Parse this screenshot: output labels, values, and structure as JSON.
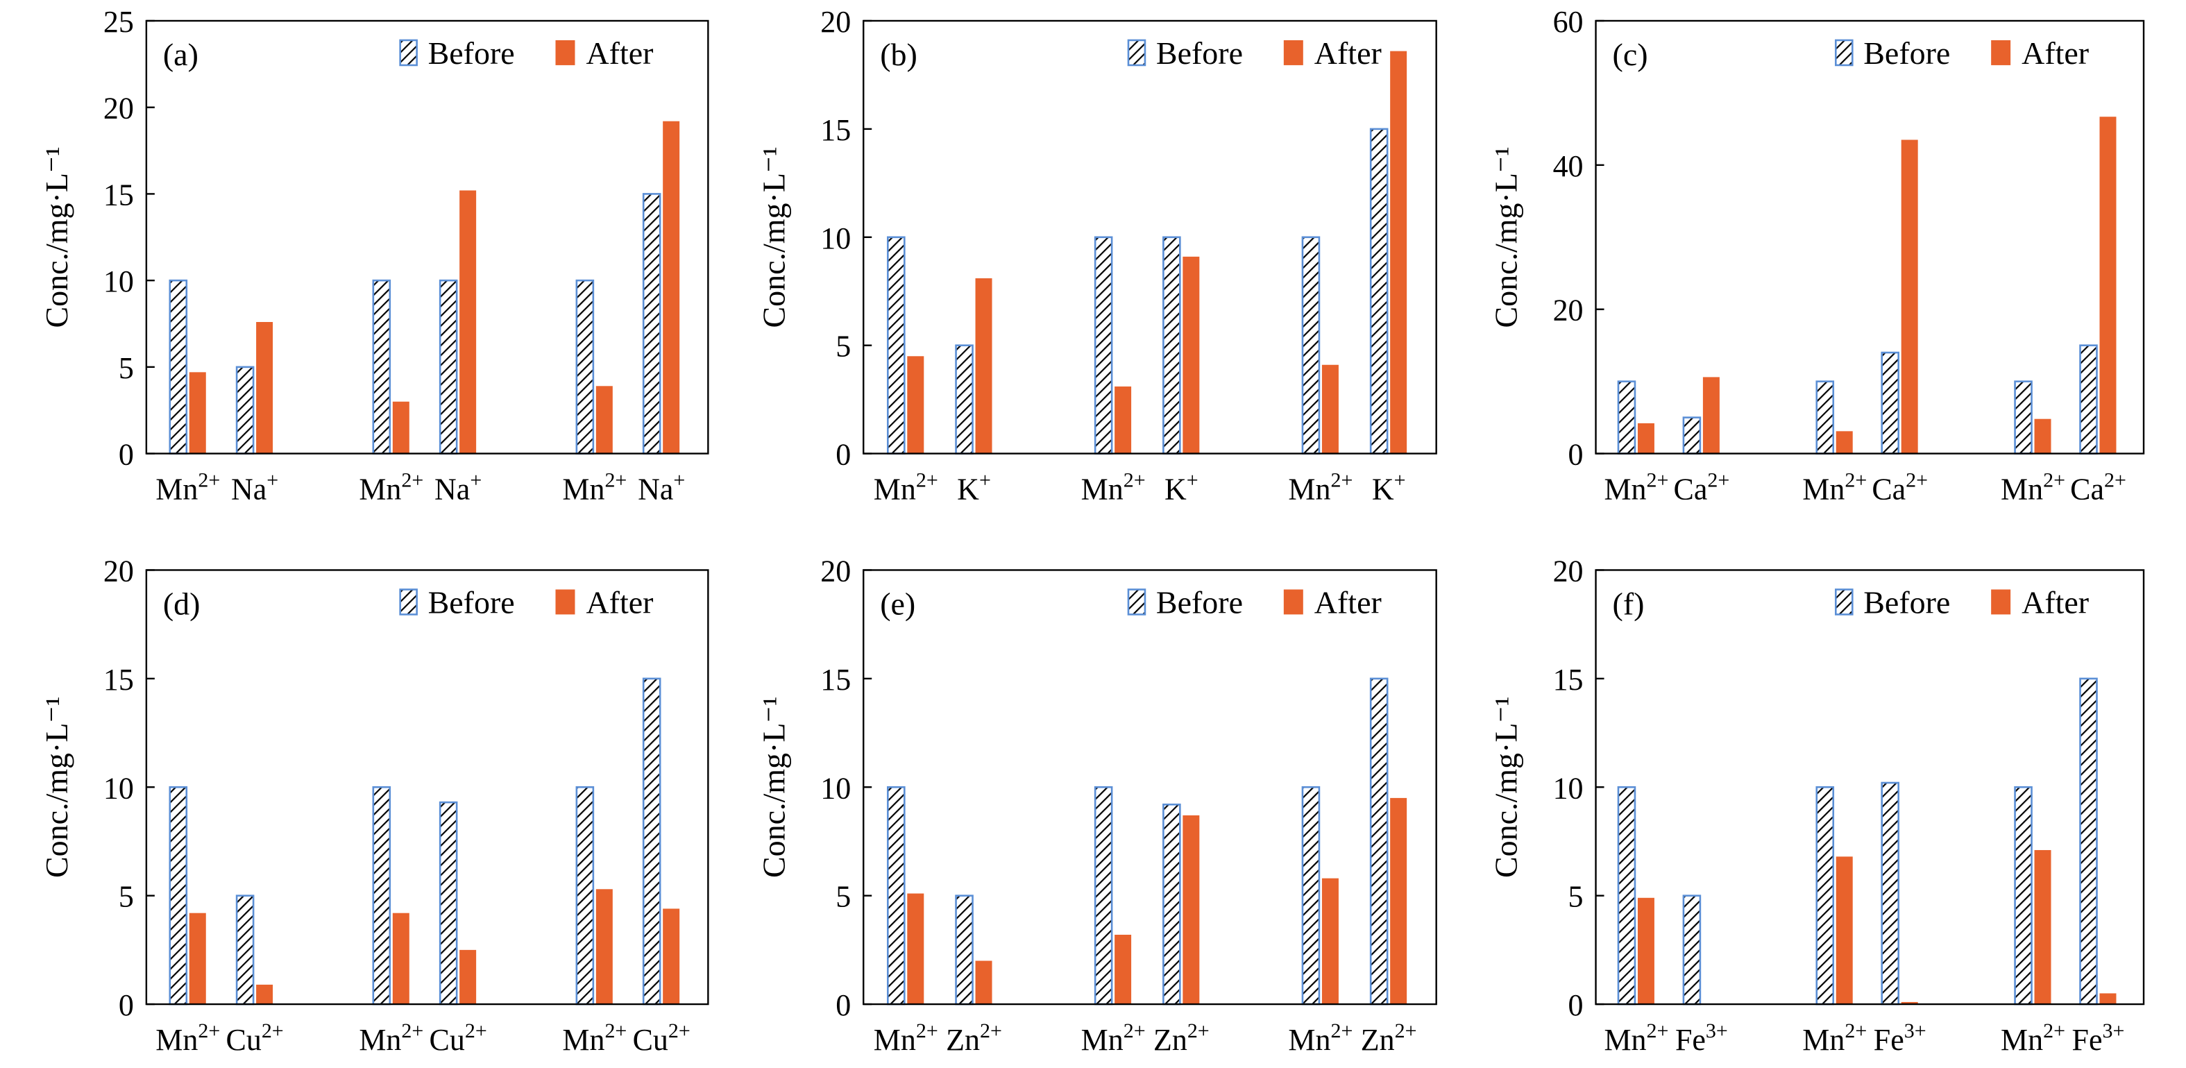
{
  "colors": {
    "before_fill": "#ffffff",
    "before_hatch": "#000000",
    "before_edge": "#5b8fd6",
    "after": "#e8622c"
  },
  "chart_data": [
    {
      "type": "bar",
      "panel": "(a)",
      "ylabel": "Conc./mg·L⁻¹",
      "ylim": [
        0,
        25
      ],
      "yticks": [
        "0",
        "5",
        "10",
        "15",
        "20",
        "25"
      ],
      "categories": [
        {
          "ion": "Mn",
          "charge": "2+"
        },
        {
          "ion": "Na",
          "charge": "+"
        },
        {
          "ion": "Mn",
          "charge": "2+"
        },
        {
          "ion": "Na",
          "charge": "+"
        },
        {
          "ion": "Mn",
          "charge": "2+"
        },
        {
          "ion": "Na",
          "charge": "+"
        }
      ],
      "series": [
        {
          "name": "Before",
          "values": [
            10,
            5,
            10,
            10,
            10,
            15
          ]
        },
        {
          "name": "After",
          "values": [
            4.7,
            7.6,
            3.0,
            15.2,
            3.9,
            19.2
          ]
        }
      ],
      "legend": "top-right",
      "grid": false
    },
    {
      "type": "bar",
      "panel": "(b)",
      "ylabel": "Conc./mg·L⁻¹",
      "ylim": [
        0,
        20
      ],
      "yticks": [
        "0",
        "5",
        "10",
        "15",
        "20"
      ],
      "categories": [
        {
          "ion": "Mn",
          "charge": "2+"
        },
        {
          "ion": "K",
          "charge": "+"
        },
        {
          "ion": "Mn",
          "charge": "2+"
        },
        {
          "ion": "K",
          "charge": "+"
        },
        {
          "ion": "Mn",
          "charge": "2+"
        },
        {
          "ion": "K",
          "charge": "+"
        }
      ],
      "series": [
        {
          "name": "Before",
          "values": [
            10,
            5,
            10,
            10,
            10,
            15
          ]
        },
        {
          "name": "After",
          "values": [
            4.5,
            8.1,
            3.1,
            9.1,
            4.1,
            18.6
          ]
        }
      ],
      "legend": "top-right",
      "grid": false
    },
    {
      "type": "bar",
      "panel": "(c)",
      "ylabel": "Conc./mg·L⁻¹",
      "ylim": [
        0,
        60
      ],
      "yticks": [
        "0",
        "20",
        "40",
        "60"
      ],
      "categories": [
        {
          "ion": "Mn",
          "charge": "2+"
        },
        {
          "ion": "Ca",
          "charge": "2+"
        },
        {
          "ion": "Mn",
          "charge": "2+"
        },
        {
          "ion": "Ca",
          "charge": "2+"
        },
        {
          "ion": "Mn",
          "charge": "2+"
        },
        {
          "ion": "Ca",
          "charge": "2+"
        }
      ],
      "series": [
        {
          "name": "Before",
          "values": [
            10,
            5,
            10,
            14,
            10,
            15
          ]
        },
        {
          "name": "After",
          "values": [
            4.2,
            10.6,
            3.1,
            43.5,
            4.8,
            46.7
          ]
        }
      ],
      "legend": "top-right",
      "grid": false
    },
    {
      "type": "bar",
      "panel": "(d)",
      "ylabel": "Conc./mg·L⁻¹",
      "ylim": [
        0,
        20
      ],
      "yticks": [
        "0",
        "5",
        "10",
        "15",
        "20"
      ],
      "categories": [
        {
          "ion": "Mn",
          "charge": "2+"
        },
        {
          "ion": "Cu",
          "charge": "2+"
        },
        {
          "ion": "Mn",
          "charge": "2+"
        },
        {
          "ion": "Cu",
          "charge": "2+"
        },
        {
          "ion": "Mn",
          "charge": "2+"
        },
        {
          "ion": "Cu",
          "charge": "2+"
        }
      ],
      "series": [
        {
          "name": "Before",
          "values": [
            10,
            5,
            10,
            9.3,
            10,
            15
          ]
        },
        {
          "name": "After",
          "values": [
            4.2,
            0.9,
            4.2,
            2.5,
            5.3,
            4.4
          ]
        }
      ],
      "legend": "top-right",
      "grid": false
    },
    {
      "type": "bar",
      "panel": "(e)",
      "ylabel": "Conc./mg·L⁻¹",
      "ylim": [
        0,
        20
      ],
      "yticks": [
        "0",
        "5",
        "10",
        "15",
        "20"
      ],
      "categories": [
        {
          "ion": "Mn",
          "charge": "2+"
        },
        {
          "ion": "Zn",
          "charge": "2+"
        },
        {
          "ion": "Mn",
          "charge": "2+"
        },
        {
          "ion": "Zn",
          "charge": "2+"
        },
        {
          "ion": "Mn",
          "charge": "2+"
        },
        {
          "ion": "Zn",
          "charge": "2+"
        }
      ],
      "series": [
        {
          "name": "Before",
          "values": [
            10,
            5,
            10,
            9.2,
            10,
            15
          ]
        },
        {
          "name": "After",
          "values": [
            5.1,
            2.0,
            3.2,
            8.7,
            5.8,
            9.5
          ]
        }
      ],
      "legend": "top-right",
      "grid": false
    },
    {
      "type": "bar",
      "panel": "(f)",
      "ylabel": "Conc./mg·L⁻¹",
      "ylim": [
        0,
        20
      ],
      "yticks": [
        "0",
        "5",
        "10",
        "15",
        "20"
      ],
      "categories": [
        {
          "ion": "Mn",
          "charge": "2+"
        },
        {
          "ion": "Fe",
          "charge": "3+"
        },
        {
          "ion": "Mn",
          "charge": "2+"
        },
        {
          "ion": "Fe",
          "charge": "3+"
        },
        {
          "ion": "Mn",
          "charge": "2+"
        },
        {
          "ion": "Fe",
          "charge": "3+"
        }
      ],
      "series": [
        {
          "name": "Before",
          "values": [
            10,
            5,
            10,
            10.2,
            10,
            15
          ]
        },
        {
          "name": "After",
          "values": [
            4.9,
            0,
            6.8,
            0.1,
            7.1,
            0.5
          ]
        }
      ],
      "legend": "top-right",
      "grid": false
    }
  ]
}
